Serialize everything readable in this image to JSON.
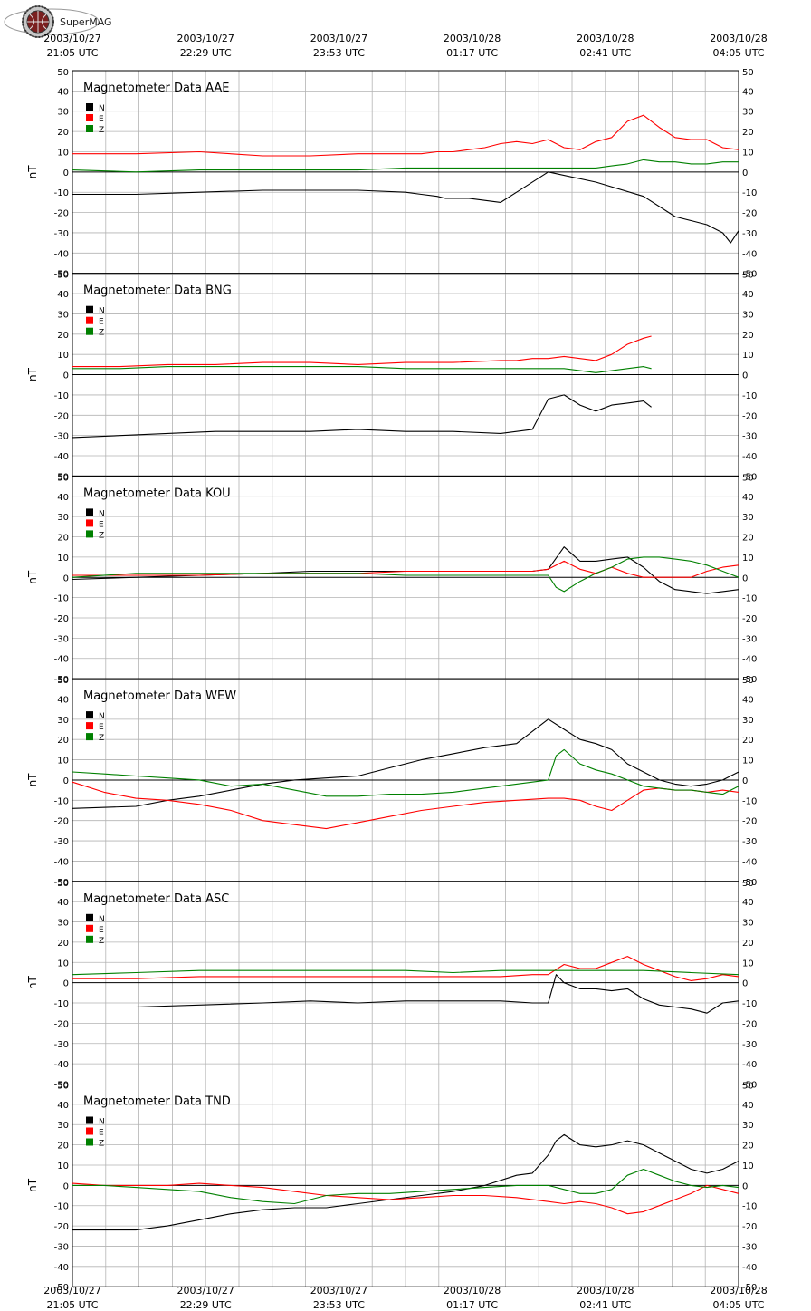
{
  "logo": {
    "brand": "SuperMAG"
  },
  "time_labels": [
    {
      "date": "2003/10/27",
      "time": "21:05 UTC"
    },
    {
      "date": "2003/10/27",
      "time": "22:29 UTC"
    },
    {
      "date": "2003/10/27",
      "time": "23:53 UTC"
    },
    {
      "date": "2003/10/28",
      "time": "01:17 UTC"
    },
    {
      "date": "2003/10/28",
      "time": "02:41 UTC"
    },
    {
      "date": "2003/10/28",
      "time": "04:05 UTC"
    }
  ],
  "chart_data": [
    {
      "type": "line",
      "title": "Magnetometer Data AAE",
      "ylabel": "nT",
      "ylim": [
        -50,
        50
      ],
      "yticks": [
        50,
        40,
        30,
        20,
        10,
        0,
        -10,
        -20,
        -30,
        -40,
        -50
      ],
      "xlim_minutes": [
        0,
        420
      ],
      "grid": true,
      "legend": "top-left",
      "series": [
        {
          "name": "N",
          "color": "#000000",
          "x": [
            0,
            40,
            80,
            120,
            150,
            180,
            210,
            220,
            230,
            235,
            240,
            250,
            260,
            270,
            280,
            300,
            330,
            360,
            380,
            390,
            400,
            405,
            410,
            415,
            420
          ],
          "y": [
            -11,
            -11,
            -10,
            -9,
            -9,
            -9,
            -10,
            -11,
            -12,
            -13,
            -13,
            -13,
            -14,
            -15,
            -10,
            0,
            -5,
            -12,
            -22,
            -24,
            -26,
            -28,
            -30,
            -35,
            -29
          ]
        },
        {
          "name": "E",
          "color": "#ff0000",
          "x": [
            0,
            40,
            80,
            120,
            150,
            180,
            210,
            220,
            230,
            240,
            250,
            260,
            270,
            280,
            290,
            300,
            310,
            320,
            330,
            340,
            350,
            360,
            370,
            380,
            390,
            400,
            410,
            420
          ],
          "y": [
            9,
            9,
            10,
            8,
            8,
            9,
            9,
            9,
            10,
            10,
            11,
            12,
            14,
            15,
            14,
            16,
            12,
            11,
            15,
            17,
            25,
            28,
            22,
            17,
            16,
            16,
            12,
            11
          ]
        },
        {
          "name": "Z",
          "color": "#008000",
          "x": [
            0,
            40,
            80,
            120,
            150,
            180,
            210,
            240,
            270,
            290,
            300,
            310,
            320,
            330,
            340,
            350,
            360,
            370,
            380,
            390,
            400,
            410,
            420
          ],
          "y": [
            1,
            0,
            1,
            1,
            1,
            1,
            2,
            2,
            2,
            2,
            2,
            2,
            2,
            2,
            3,
            4,
            6,
            5,
            5,
            4,
            4,
            5,
            5
          ]
        }
      ]
    },
    {
      "type": "line",
      "title": "Magnetometer Data BNG",
      "ylabel": "nT",
      "ylim": [
        -50,
        50
      ],
      "yticks": [
        50,
        40,
        30,
        20,
        10,
        0,
        -10,
        -20,
        -30,
        -40,
        -50
      ],
      "xlim_minutes": [
        0,
        420
      ],
      "grid": true,
      "legend": "top-left",
      "series": [
        {
          "name": "N",
          "color": "#000000",
          "x": [
            0,
            30,
            60,
            90,
            120,
            150,
            180,
            210,
            240,
            270,
            280,
            290,
            300,
            310,
            320,
            330,
            340,
            350,
            360,
            365
          ],
          "y": [
            -31,
            -30,
            -29,
            -28,
            -28,
            -28,
            -27,
            -28,
            -28,
            -29,
            -28,
            -27,
            -12,
            -10,
            -15,
            -18,
            -15,
            -14,
            -13,
            -16
          ]
        },
        {
          "name": "E",
          "color": "#ff0000",
          "x": [
            0,
            30,
            60,
            90,
            120,
            150,
            180,
            210,
            240,
            270,
            280,
            290,
            300,
            310,
            320,
            330,
            340,
            350,
            360,
            365
          ],
          "y": [
            4,
            4,
            5,
            5,
            6,
            6,
            5,
            6,
            6,
            7,
            7,
            8,
            8,
            9,
            8,
            7,
            10,
            15,
            18,
            19
          ]
        },
        {
          "name": "Z",
          "color": "#008000",
          "x": [
            0,
            30,
            60,
            90,
            120,
            150,
            180,
            210,
            240,
            270,
            290,
            300,
            310,
            320,
            330,
            340,
            350,
            360,
            365
          ],
          "y": [
            3,
            3,
            4,
            4,
            4,
            4,
            4,
            3,
            3,
            3,
            3,
            3,
            3,
            2,
            1,
            2,
            3,
            4,
            3
          ]
        }
      ]
    },
    {
      "type": "line",
      "title": "Magnetometer Data KOU",
      "ylabel": "nT",
      "ylim": [
        -50,
        50
      ],
      "yticks": [
        50,
        40,
        30,
        20,
        10,
        0,
        -10,
        -20,
        -30,
        -40,
        -50
      ],
      "xlim_minutes": [
        0,
        420
      ],
      "grid": true,
      "legend": "top-left",
      "series": [
        {
          "name": "N",
          "color": "#000000",
          "x": [
            0,
            40,
            80,
            120,
            150,
            180,
            210,
            240,
            270,
            290,
            300,
            310,
            320,
            330,
            340,
            350,
            360,
            370,
            380,
            390,
            400,
            410,
            420
          ],
          "y": [
            -1,
            0,
            1,
            2,
            3,
            3,
            3,
            3,
            3,
            3,
            4,
            15,
            8,
            8,
            9,
            10,
            5,
            -2,
            -6,
            -7,
            -8,
            -7,
            -6
          ]
        },
        {
          "name": "E",
          "color": "#ff0000",
          "x": [
            0,
            40,
            80,
            120,
            150,
            180,
            210,
            240,
            270,
            290,
            300,
            310,
            320,
            330,
            340,
            350,
            360,
            370,
            380,
            390,
            400,
            410,
            420
          ],
          "y": [
            1,
            1,
            1,
            2,
            2,
            2,
            3,
            3,
            3,
            3,
            4,
            8,
            4,
            2,
            5,
            2,
            0,
            0,
            0,
            0,
            3,
            5,
            6
          ]
        },
        {
          "name": "Z",
          "color": "#008000",
          "x": [
            0,
            40,
            80,
            120,
            150,
            180,
            210,
            240,
            270,
            290,
            300,
            305,
            310,
            320,
            330,
            340,
            350,
            360,
            370,
            380,
            390,
            400,
            410,
            420
          ],
          "y": [
            0,
            2,
            2,
            2,
            2,
            2,
            1,
            1,
            1,
            1,
            1,
            -5,
            -7,
            -2,
            2,
            5,
            9,
            10,
            10,
            9,
            8,
            6,
            3,
            0
          ]
        }
      ]
    },
    {
      "type": "line",
      "title": "Magnetometer Data WEW",
      "ylabel": "nT",
      "ylim": [
        -50,
        50
      ],
      "yticks": [
        50,
        40,
        30,
        20,
        10,
        0,
        -10,
        -20,
        -30,
        -40,
        -50
      ],
      "xlim_minutes": [
        0,
        420
      ],
      "grid": true,
      "legend": "top-left",
      "series": [
        {
          "name": "N",
          "color": "#000000",
          "x": [
            0,
            40,
            60,
            80,
            100,
            120,
            140,
            160,
            180,
            200,
            220,
            240,
            260,
            280,
            300,
            310,
            320,
            330,
            340,
            350,
            360,
            370,
            380,
            390,
            400,
            410,
            420
          ],
          "y": [
            -14,
            -13,
            -10,
            -8,
            -5,
            -2,
            0,
            1,
            2,
            6,
            10,
            13,
            16,
            18,
            30,
            25,
            20,
            18,
            15,
            8,
            4,
            0,
            -2,
            -3,
            -2,
            0,
            4
          ]
        },
        {
          "name": "E",
          "color": "#ff0000",
          "x": [
            0,
            20,
            40,
            60,
            80,
            100,
            120,
            140,
            160,
            180,
            200,
            220,
            240,
            260,
            280,
            300,
            310,
            320,
            330,
            340,
            350,
            360,
            370,
            380,
            390,
            400,
            410,
            420
          ],
          "y": [
            -1,
            -6,
            -9,
            -10,
            -12,
            -15,
            -20,
            -22,
            -24,
            -21,
            -18,
            -15,
            -13,
            -11,
            -10,
            -9,
            -9,
            -10,
            -13,
            -15,
            -10,
            -5,
            -4,
            -5,
            -5,
            -6,
            -5,
            -6
          ]
        },
        {
          "name": "Z",
          "color": "#008000",
          "x": [
            0,
            20,
            40,
            60,
            80,
            100,
            120,
            140,
            160,
            180,
            200,
            220,
            240,
            260,
            280,
            300,
            305,
            310,
            320,
            330,
            340,
            350,
            360,
            370,
            380,
            390,
            400,
            410,
            420
          ],
          "y": [
            4,
            3,
            2,
            1,
            0,
            -3,
            -2,
            -5,
            -8,
            -8,
            -7,
            -7,
            -6,
            -4,
            -2,
            0,
            12,
            15,
            8,
            5,
            3,
            0,
            -3,
            -4,
            -5,
            -5,
            -6,
            -7,
            -3
          ]
        }
      ]
    },
    {
      "type": "line",
      "title": "Magnetometer Data ASC",
      "ylabel": "nT",
      "ylim": [
        -50,
        50
      ],
      "yticks": [
        50,
        40,
        30,
        20,
        10,
        0,
        -10,
        -20,
        -30,
        -40,
        -50
      ],
      "xlim_minutes": [
        0,
        420
      ],
      "grid": true,
      "legend": "top-left",
      "series": [
        {
          "name": "N",
          "color": "#000000",
          "x": [
            0,
            40,
            80,
            120,
            150,
            180,
            210,
            240,
            270,
            290,
            300,
            305,
            310,
            320,
            330,
            340,
            350,
            360,
            370,
            380,
            390,
            400,
            410,
            420
          ],
          "y": [
            -12,
            -12,
            -11,
            -10,
            -9,
            -10,
            -9,
            -9,
            -9,
            -10,
            -10,
            4,
            0,
            -3,
            -3,
            -4,
            -3,
            -8,
            -11,
            -12,
            -13,
            -15,
            -10,
            -9
          ]
        },
        {
          "name": "E",
          "color": "#ff0000",
          "x": [
            0,
            40,
            80,
            120,
            150,
            180,
            210,
            240,
            270,
            290,
            300,
            310,
            320,
            330,
            340,
            350,
            360,
            370,
            380,
            390,
            400,
            410,
            420
          ],
          "y": [
            2,
            2,
            3,
            3,
            3,
            3,
            3,
            3,
            3,
            4,
            4,
            9,
            7,
            7,
            10,
            13,
            9,
            6,
            3,
            1,
            2,
            4,
            3
          ]
        },
        {
          "name": "Z",
          "color": "#008000",
          "x": [
            0,
            40,
            80,
            120,
            150,
            180,
            210,
            240,
            270,
            300,
            330,
            360,
            390,
            420
          ],
          "y": [
            4,
            5,
            6,
            6,
            6,
            6,
            6,
            5,
            6,
            6,
            6,
            6,
            5,
            4
          ]
        }
      ]
    },
    {
      "type": "line",
      "title": "Magnetometer Data TND",
      "ylabel": "nT",
      "ylim": [
        -50,
        50
      ],
      "yticks": [
        50,
        40,
        30,
        20,
        10,
        0,
        -10,
        -20,
        -30,
        -40,
        -50
      ],
      "xlim_minutes": [
        0,
        420
      ],
      "grid": true,
      "legend": "top-left",
      "series": [
        {
          "name": "N",
          "color": "#000000",
          "x": [
            0,
            40,
            60,
            80,
            100,
            120,
            140,
            160,
            180,
            200,
            220,
            240,
            260,
            280,
            290,
            300,
            305,
            310,
            320,
            330,
            340,
            350,
            360,
            370,
            380,
            390,
            400,
            410,
            420
          ],
          "y": [
            -22,
            -22,
            -20,
            -17,
            -14,
            -12,
            -11,
            -11,
            -9,
            -7,
            -5,
            -3,
            0,
            5,
            6,
            15,
            22,
            25,
            20,
            19,
            20,
            22,
            20,
            16,
            12,
            8,
            6,
            8,
            12
          ]
        },
        {
          "name": "E",
          "color": "#ff0000",
          "x": [
            0,
            20,
            40,
            60,
            80,
            100,
            120,
            140,
            160,
            180,
            200,
            220,
            240,
            260,
            280,
            300,
            310,
            320,
            330,
            340,
            350,
            360,
            370,
            380,
            390,
            400,
            410,
            420
          ],
          "y": [
            1,
            0,
            0,
            0,
            1,
            0,
            -1,
            -3,
            -5,
            -6,
            -7,
            -6,
            -5,
            -5,
            -6,
            -8,
            -9,
            -8,
            -9,
            -11,
            -14,
            -13,
            -10,
            -7,
            -4,
            0,
            -2,
            -4
          ]
        },
        {
          "name": "Z",
          "color": "#008000",
          "x": [
            0,
            20,
            40,
            60,
            80,
            100,
            120,
            140,
            160,
            180,
            200,
            220,
            240,
            260,
            280,
            300,
            310,
            320,
            330,
            340,
            350,
            360,
            370,
            380,
            390,
            400,
            410,
            420
          ],
          "y": [
            0,
            0,
            -1,
            -2,
            -3,
            -6,
            -8,
            -9,
            -5,
            -4,
            -4,
            -3,
            -2,
            -1,
            0,
            0,
            -2,
            -4,
            -4,
            -2,
            5,
            8,
            5,
            2,
            0,
            -1,
            0,
            -1
          ]
        }
      ]
    }
  ]
}
